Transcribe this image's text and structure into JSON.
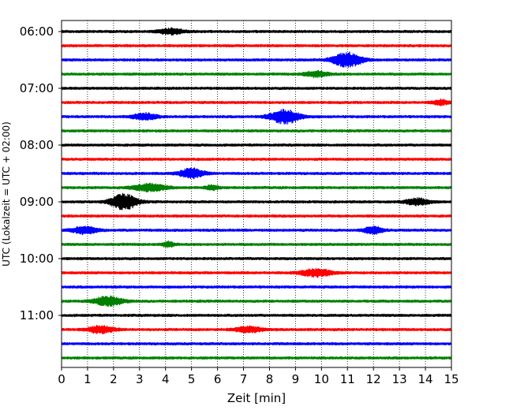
{
  "chart_data": {
    "type": "line",
    "title": "",
    "xlabel": "Zeit  [min]",
    "ylabel": "UTC (Lokalzeit = UTC + 02:00)",
    "xlim": [
      0,
      15
    ],
    "x_ticks": [
      "0",
      "1",
      "2",
      "3",
      "4",
      "5",
      "6",
      "7",
      "8",
      "9",
      "10",
      "11",
      "12",
      "13",
      "14",
      "15"
    ],
    "grid_x": true,
    "y_ticks": [
      {
        "label": "06:00",
        "row": 0
      },
      {
        "label": "07:00",
        "row": 4
      },
      {
        "label": "08:00",
        "row": 8
      },
      {
        "label": "09:00",
        "row": 12
      },
      {
        "label": "10:00",
        "row": 16
      },
      {
        "label": "11:00",
        "row": 20
      }
    ],
    "row_colors": [
      "#000000",
      "#ff0000",
      "#0000ff",
      "#008000"
    ],
    "traces": [
      {
        "start": "06:00",
        "color": "#000000",
        "events": [
          {
            "t": 4.2,
            "amp": 0.35,
            "dur": 0.9
          }
        ]
      },
      {
        "start": "06:15",
        "color": "#ff0000",
        "events": []
      },
      {
        "start": "06:30",
        "color": "#0000ff",
        "events": [
          {
            "t": 11.0,
            "amp": 0.9,
            "dur": 1.1
          }
        ]
      },
      {
        "start": "06:45",
        "color": "#008000",
        "events": [
          {
            "t": 9.8,
            "amp": 0.35,
            "dur": 0.9
          }
        ]
      },
      {
        "start": "07:00",
        "color": "#000000",
        "events": []
      },
      {
        "start": "07:15",
        "color": "#ff0000",
        "events": [
          {
            "t": 14.6,
            "amp": 0.3,
            "dur": 0.6
          }
        ]
      },
      {
        "start": "07:30",
        "color": "#0000ff",
        "events": [
          {
            "t": 3.2,
            "amp": 0.4,
            "dur": 0.9
          },
          {
            "t": 8.6,
            "amp": 0.85,
            "dur": 1.1
          }
        ]
      },
      {
        "start": "07:45",
        "color": "#008000",
        "events": []
      },
      {
        "start": "08:00",
        "color": "#000000",
        "events": []
      },
      {
        "start": "08:15",
        "color": "#ff0000",
        "events": []
      },
      {
        "start": "08:30",
        "color": "#0000ff",
        "events": [
          {
            "t": 5.0,
            "amp": 0.6,
            "dur": 0.9
          }
        ]
      },
      {
        "start": "08:45",
        "color": "#008000",
        "events": [
          {
            "t": 3.4,
            "amp": 0.45,
            "dur": 1.2
          },
          {
            "t": 5.8,
            "amp": 0.3,
            "dur": 0.5
          }
        ]
      },
      {
        "start": "09:00",
        "color": "#000000",
        "events": [
          {
            "t": 2.4,
            "amp": 1.0,
            "dur": 1.0
          },
          {
            "t": 13.7,
            "amp": 0.4,
            "dur": 0.9
          }
        ]
      },
      {
        "start": "09:15",
        "color": "#ff0000",
        "events": []
      },
      {
        "start": "09:30",
        "color": "#0000ff",
        "events": [
          {
            "t": 0.9,
            "amp": 0.45,
            "dur": 0.9
          },
          {
            "t": 12.0,
            "amp": 0.45,
            "dur": 0.7
          }
        ]
      },
      {
        "start": "09:45",
        "color": "#008000",
        "events": [
          {
            "t": 4.1,
            "amp": 0.3,
            "dur": 0.5
          }
        ]
      },
      {
        "start": "10:00",
        "color": "#000000",
        "events": []
      },
      {
        "start": "10:15",
        "color": "#ff0000",
        "events": [
          {
            "t": 9.8,
            "amp": 0.45,
            "dur": 1.2
          }
        ]
      },
      {
        "start": "10:30",
        "color": "#0000ff",
        "events": []
      },
      {
        "start": "10:45",
        "color": "#008000",
        "events": [
          {
            "t": 1.8,
            "amp": 0.55,
            "dur": 1.1
          }
        ]
      },
      {
        "start": "11:00",
        "color": "#000000",
        "events": []
      },
      {
        "start": "11:15",
        "color": "#ff0000",
        "events": [
          {
            "t": 1.5,
            "amp": 0.45,
            "dur": 1.0
          },
          {
            "t": 7.2,
            "amp": 0.35,
            "dur": 1.0
          }
        ]
      },
      {
        "start": "11:30",
        "color": "#0000ff",
        "events": []
      },
      {
        "start": "11:45",
        "color": "#008000",
        "events": []
      }
    ]
  }
}
